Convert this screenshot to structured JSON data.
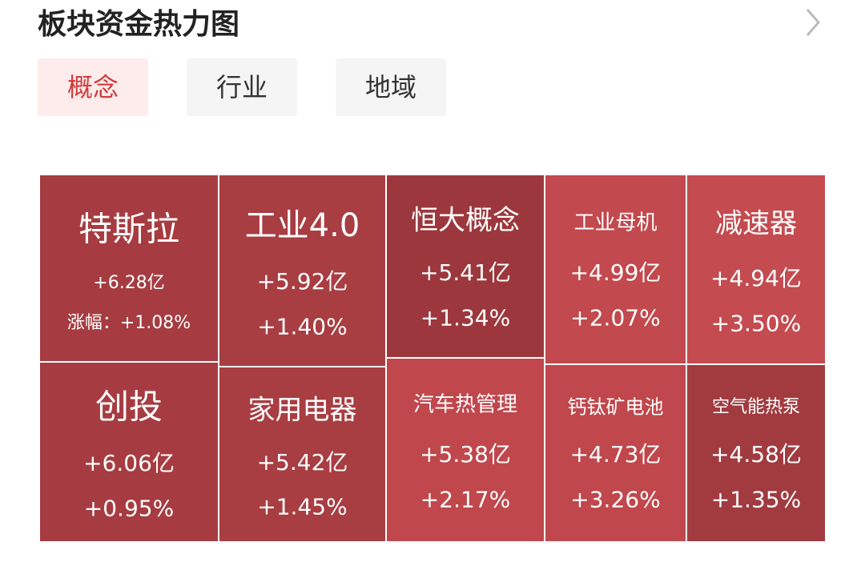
{
  "header": {
    "title": "板块资金热力图"
  },
  "tabs": [
    "概念",
    "行业",
    "地域"
  ],
  "cells": [
    {
      "name": "特斯拉",
      "flow": "+6.28亿",
      "change": "涨幅：+1.08%"
    },
    {
      "name": "创投",
      "flow": "+6.06亿",
      "change": "+0.95%"
    },
    {
      "name": "工业4.0",
      "flow": "+5.92亿",
      "change": "+1.40%"
    },
    {
      "name": "家用电器",
      "flow": "+5.42亿",
      "change": "+1.45%"
    },
    {
      "name": "恒大概念",
      "flow": "+5.41亿",
      "change": "+1.34%"
    },
    {
      "name": "汽车热管理",
      "flow": "+5.38亿",
      "change": "+2.17%"
    },
    {
      "name": "工业母机",
      "flow": "+4.99亿",
      "change": "+2.07%"
    },
    {
      "name": "钙钛矿电池",
      "flow": "+4.73亿",
      "change": "+3.26%"
    },
    {
      "name": "减速器",
      "flow": "+4.94亿",
      "change": "+3.50%"
    },
    {
      "name": "空气能热泵",
      "flow": "+4.58亿",
      "change": "+1.35%"
    }
  ]
}
